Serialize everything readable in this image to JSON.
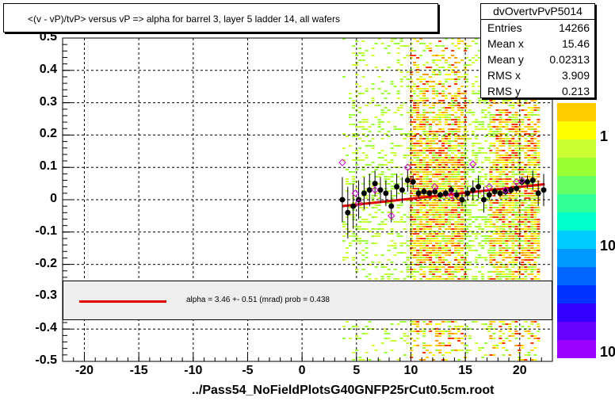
{
  "title": "<(v - vP)/tvP> versus   vP => alpha for barrel 3, layer 5 ladder 14, all wafers",
  "stats": {
    "name": "dvOvertvPvP5014",
    "rows": [
      {
        "key": "Entries",
        "value": "14266"
      },
      {
        "key": "Mean x",
        "value": "15.46"
      },
      {
        "key": "Mean y",
        "value": "0.02313"
      },
      {
        "key": "RMS x",
        "value": "3.909"
      },
      {
        "key": "RMS y",
        "value": "0.213"
      }
    ]
  },
  "legend": {
    "fit_label": "alpha =    3.46 +-  0.51 (mrad) prob = 0.438",
    "line_color": "#e00000"
  },
  "footer": "../Pass54_NoFieldPlotsG40GNFP25rCut0.5cm.root",
  "colors": {
    "fit": "#e00000",
    "grid": "#000000",
    "open_marker": "#cc00cc"
  },
  "z_scale_labels": [
    "1",
    "10",
    "10"
  ],
  "chart_data": {
    "type": "scatter",
    "xlim": [
      -22,
      23
    ],
    "ylim": [
      -0.5,
      0.5
    ],
    "grid": true,
    "x_ticks": [
      -20,
      -15,
      -10,
      -5,
      0,
      5,
      10,
      15,
      20
    ],
    "y_ticks": [
      -0.5,
      -0.4,
      -0.3,
      -0.2,
      -0.1,
      0,
      0.1,
      0.2,
      0.3,
      0.4,
      0.5
    ],
    "x_tick_labels": [
      "-20",
      "-15",
      "-10",
      "-5",
      "0",
      "5",
      "10",
      "15",
      "20"
    ],
    "y_tick_labels": [
      "-0.5",
      "-0.4",
      "-0.3",
      "-0.2",
      "-0.1",
      "0",
      "0.1",
      "0.2",
      "0.3",
      "0.4",
      "0.5"
    ],
    "fit_line": {
      "x": [
        3.7,
        22.3
      ],
      "y": [
        -0.02,
        0.048
      ]
    },
    "heatmap_columns": [
      {
        "x0": 3.7,
        "x1": 4.6,
        "density": 0.2,
        "ymin": -0.45,
        "ymax": 0.5
      },
      {
        "x0": 4.6,
        "x1": 5.5,
        "density": 0.25,
        "ymin": -0.5,
        "ymax": 0.5
      },
      {
        "x0": 5.5,
        "x1": 9.9,
        "density": 0.3,
        "ymin": -0.5,
        "ymax": 0.5
      },
      {
        "x0": 9.9,
        "x1": 15.0,
        "density": 0.9,
        "ymin": -0.5,
        "ymax": 0.5
      },
      {
        "x0": 15.0,
        "x1": 17.2,
        "density": 0.45,
        "ymin": -0.5,
        "ymax": 0.5
      },
      {
        "x0": 17.2,
        "x1": 21.7,
        "density": 0.85,
        "ymin": -0.5,
        "ymax": 0.5
      }
    ],
    "profile_points": {
      "x": [
        3.7,
        4.2,
        4.7,
        5.2,
        5.7,
        6.2,
        6.7,
        7.2,
        7.7,
        8.2,
        8.7,
        9.2,
        9.7,
        10.2,
        10.7,
        11.2,
        11.7,
        12.2,
        12.7,
        13.2,
        13.7,
        14.2,
        14.7,
        15.2,
        15.7,
        16.2,
        16.7,
        17.2,
        17.7,
        18.2,
        18.7,
        19.2,
        19.7,
        20.2,
        20.7,
        21.2,
        21.7,
        22.2
      ],
      "y": [
        0.0,
        -0.04,
        -0.02,
        0.0,
        0.02,
        0.03,
        0.05,
        0.03,
        0.02,
        -0.02,
        0.04,
        0.03,
        0.06,
        0.055,
        0.02,
        0.025,
        0.02,
        0.025,
        0.015,
        0.02,
        0.03,
        0.015,
        0.0,
        0.02,
        0.03,
        0.04,
        0.0,
        0.015,
        0.025,
        0.02,
        0.025,
        0.03,
        0.035,
        0.055,
        0.055,
        0.06,
        0.02,
        0.03
      ],
      "err": [
        0.07,
        0.08,
        0.07,
        0.06,
        0.05,
        0.05,
        0.04,
        0.04,
        0.04,
        0.05,
        0.04,
        0.04,
        0.035,
        0.02,
        0.015,
        0.012,
        0.01,
        0.012,
        0.01,
        0.012,
        0.012,
        0.015,
        0.02,
        0.02,
        0.03,
        0.035,
        0.04,
        0.015,
        0.012,
        0.012,
        0.012,
        0.012,
        0.012,
        0.015,
        0.02,
        0.03,
        0.04,
        0.05
      ]
    },
    "open_points": {
      "x": [
        3.7,
        4.9,
        5.2,
        6.7,
        8.2,
        9.7,
        12.2,
        13.7,
        15.7,
        17.2,
        18.7,
        19.7,
        20.2
      ],
      "y": [
        0.115,
        0.02,
        -0.01,
        0.03,
        -0.05,
        0.1,
        0.04,
        0.015,
        0.11,
        0.04,
        0.03,
        0.055,
        0.06
      ]
    }
  }
}
